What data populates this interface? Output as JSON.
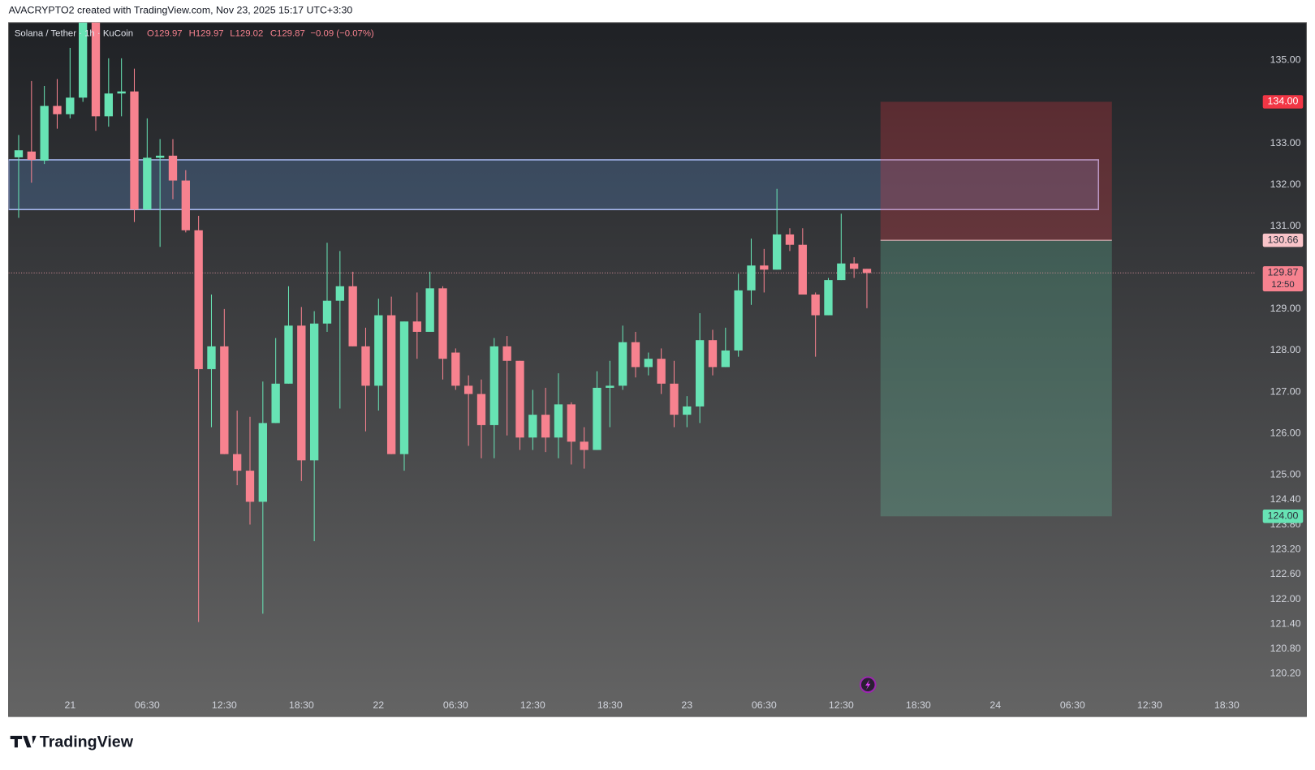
{
  "chart_data": {
    "type": "candlestick",
    "attribution": "AVACRYPTO2 created with TradingView.com, Nov 23, 2025 15:17 UTC+3:30",
    "brand": "TradingView",
    "title": "Solana / Tether · 1h · KuCoin",
    "ohlc_labels": [
      "O129.97",
      "H129.97",
      "L129.02",
      "C129.87"
    ],
    "change": "−0.09 (−0.07%)",
    "up_color": "#67e3b4",
    "down_color": "#f7828f",
    "grid": false,
    "categories": [
      null,
      null,
      null,
      null,
      "21",
      null,
      null,
      null,
      null,
      null,
      "06:30",
      null,
      null,
      null,
      null,
      null,
      "12:30",
      null,
      null,
      null,
      null,
      null,
      "18:30",
      null,
      null,
      null,
      null,
      null,
      "22",
      null,
      null,
      null,
      null,
      null,
      "06:30",
      null,
      null,
      null,
      null,
      null,
      "12:30",
      null,
      null,
      null,
      null,
      null,
      "18:30",
      null,
      null,
      null,
      null,
      null,
      "23",
      null,
      null,
      null,
      null,
      null,
      "06:30",
      null,
      null,
      null,
      null,
      null,
      "12:30",
      null,
      null,
      null,
      null,
      null,
      "18:30",
      null,
      null,
      null,
      null,
      null,
      "24",
      null,
      null,
      null,
      null,
      null,
      "06:30",
      null,
      null,
      null,
      null,
      null,
      "12:30",
      null,
      null,
      null,
      null,
      null,
      "18:30",
      null,
      null
    ],
    "open": [
      132.66,
      132.8,
      132.58,
      133.9,
      133.7,
      134.1,
      135.95,
      133.65,
      134.2,
      134.25,
      131.4,
      132.65,
      132.7,
      132.1,
      130.9,
      127.55,
      128.1,
      125.5,
      125.1,
      124.35,
      126.25,
      127.2,
      128.6,
      125.35,
      128.65,
      129.2,
      129.55,
      128.1,
      127.15,
      128.85,
      125.5,
      128.7,
      128.45,
      129.5,
      127.95,
      127.15,
      126.95,
      126.2,
      128.1,
      127.75,
      125.9,
      126.45,
      125.9,
      126.7,
      125.8,
      125.6,
      127.1,
      127.15,
      128.2,
      127.6,
      127.8,
      127.2,
      126.45,
      126.65,
      128.25,
      127.6,
      128.0,
      129.45,
      130.05,
      129.95,
      130.8,
      130.55,
      129.35,
      128.85,
      129.7,
      130.1,
      129.97,
      null,
      null,
      null,
      null,
      null,
      null,
      null,
      null,
      null,
      null,
      null,
      null,
      null,
      null,
      null,
      null,
      null,
      null,
      null,
      null,
      null,
      null,
      null,
      null,
      null,
      null,
      null,
      null,
      null,
      null
    ],
    "high": [
      133.2,
      134.5,
      134.38,
      134.55,
      135.3,
      136.2,
      136.2,
      135.05,
      135.05,
      134.8,
      133.6,
      133.1,
      133.1,
      132.35,
      131.25,
      129.35,
      129.0,
      126.55,
      126.4,
      127.25,
      128.3,
      129.55,
      129.05,
      128.95,
      130.6,
      130.4,
      129.9,
      128.55,
      129.25,
      129.3,
      128.7,
      129.4,
      129.9,
      129.55,
      128.05,
      127.4,
      127.3,
      128.3,
      128.35,
      127.75,
      127.05,
      127.1,
      127.45,
      126.75,
      126.15,
      127.5,
      127.75,
      128.6,
      128.45,
      127.95,
      128.05,
      127.75,
      126.9,
      128.9,
      128.5,
      128.55,
      129.85,
      130.7,
      130.45,
      131.9,
      130.95,
      130.95,
      129.4,
      129.75,
      131.3,
      130.25,
      129.97,
      null,
      null,
      null,
      null,
      null,
      null,
      null,
      null,
      null,
      null,
      null,
      null,
      null,
      null,
      null,
      null,
      null,
      null,
      null,
      null,
      null,
      null,
      null,
      null,
      null,
      null,
      null,
      null,
      null,
      null
    ],
    "low": [
      131.2,
      132.05,
      132.5,
      133.35,
      133.6,
      134.0,
      133.3,
      133.4,
      133.65,
      131.1,
      131.4,
      130.5,
      131.65,
      130.85,
      121.45,
      126.15,
      125.5,
      124.75,
      123.8,
      121.65,
      126.25,
      127.2,
      124.85,
      123.4,
      128.45,
      126.6,
      128.1,
      126.05,
      126.55,
      125.5,
      125.1,
      127.8,
      128.45,
      127.3,
      127.05,
      125.7,
      125.4,
      125.4,
      125.95,
      125.6,
      125.6,
      125.55,
      125.4,
      125.25,
      125.15,
      125.6,
      126.15,
      127.05,
      127.35,
      127.4,
      126.95,
      126.15,
      126.15,
      126.25,
      127.4,
      127.6,
      127.85,
      129.1,
      129.4,
      129.95,
      130.4,
      129.35,
      127.85,
      128.85,
      129.7,
      129.75,
      129.02,
      null,
      null,
      null,
      null,
      null,
      null,
      null,
      null,
      null,
      null,
      null,
      null,
      null,
      null,
      null,
      null,
      null,
      null,
      null,
      null,
      null,
      null,
      null,
      null,
      null,
      null,
      null,
      null,
      null,
      null
    ],
    "close": [
      132.83,
      132.6,
      133.9,
      133.7,
      134.1,
      135.95,
      133.65,
      134.2,
      134.25,
      131.4,
      132.65,
      132.7,
      132.1,
      130.9,
      127.55,
      128.1,
      125.5,
      125.1,
      124.35,
      126.25,
      127.2,
      128.6,
      125.35,
      128.65,
      129.2,
      129.55,
      128.1,
      127.15,
      128.85,
      125.5,
      128.7,
      128.45,
      129.5,
      127.8,
      127.15,
      126.95,
      126.2,
      128.1,
      127.75,
      125.9,
      126.45,
      125.9,
      126.7,
      125.8,
      125.6,
      127.1,
      127.15,
      128.2,
      127.6,
      127.8,
      127.2,
      126.45,
      126.65,
      128.25,
      127.6,
      128.0,
      129.45,
      130.05,
      129.95,
      130.8,
      130.55,
      129.35,
      128.85,
      129.7,
      130.1,
      129.97,
      129.87,
      null,
      null,
      null,
      null,
      null,
      null,
      null,
      null,
      null,
      null,
      null,
      null,
      null,
      null,
      null,
      null,
      null,
      null,
      null,
      null,
      null,
      null,
      null,
      null,
      null,
      null,
      null,
      null,
      null,
      null
    ],
    "ylim": [
      119.17,
      135.91
    ],
    "yticks": [
      {
        "value": 135,
        "label": "135.00"
      },
      {
        "value": 133,
        "label": "133.00"
      },
      {
        "value": 132,
        "label": "132.00"
      },
      {
        "value": 131,
        "label": "131.00"
      },
      {
        "value": 129,
        "label": "129.00"
      },
      {
        "value": 128,
        "label": "128.00"
      },
      {
        "value": 127,
        "label": "127.00"
      },
      {
        "value": 126,
        "label": "126.00"
      },
      {
        "value": 125,
        "label": "125.00"
      },
      {
        "value": 124.4,
        "label": "124.40"
      },
      {
        "value": 123.8,
        "label": "123.80"
      },
      {
        "value": 123.2,
        "label": "123.20"
      },
      {
        "value": 122.6,
        "label": "122.60"
      },
      {
        "value": 122,
        "label": "122.00"
      },
      {
        "value": 121.4,
        "label": "121.40"
      },
      {
        "value": 120.8,
        "label": "120.80"
      },
      {
        "value": 120.2,
        "label": "120.20"
      }
    ],
    "zone": {
      "top": 132.6,
      "bottom": 131.4
    },
    "position": {
      "stop": 134.0,
      "entry": 130.66,
      "target": 124.0
    },
    "levels": [
      {
        "value": 134.0,
        "label": "134.00",
        "color": "#f23645",
        "text_color": "#ffffff"
      },
      {
        "value": 130.66,
        "label": "130.66",
        "color": "#f9c4c9",
        "text_color": "#2a2e39"
      },
      {
        "value": 129.87,
        "label": "129.87",
        "color": "#f7828f",
        "text_color": "#2a2e39",
        "countdown": "12:50"
      },
      {
        "value": 124.0,
        "label": "124.00",
        "color": "#67e3b4",
        "text_color": "#2a2e39"
      }
    ]
  }
}
